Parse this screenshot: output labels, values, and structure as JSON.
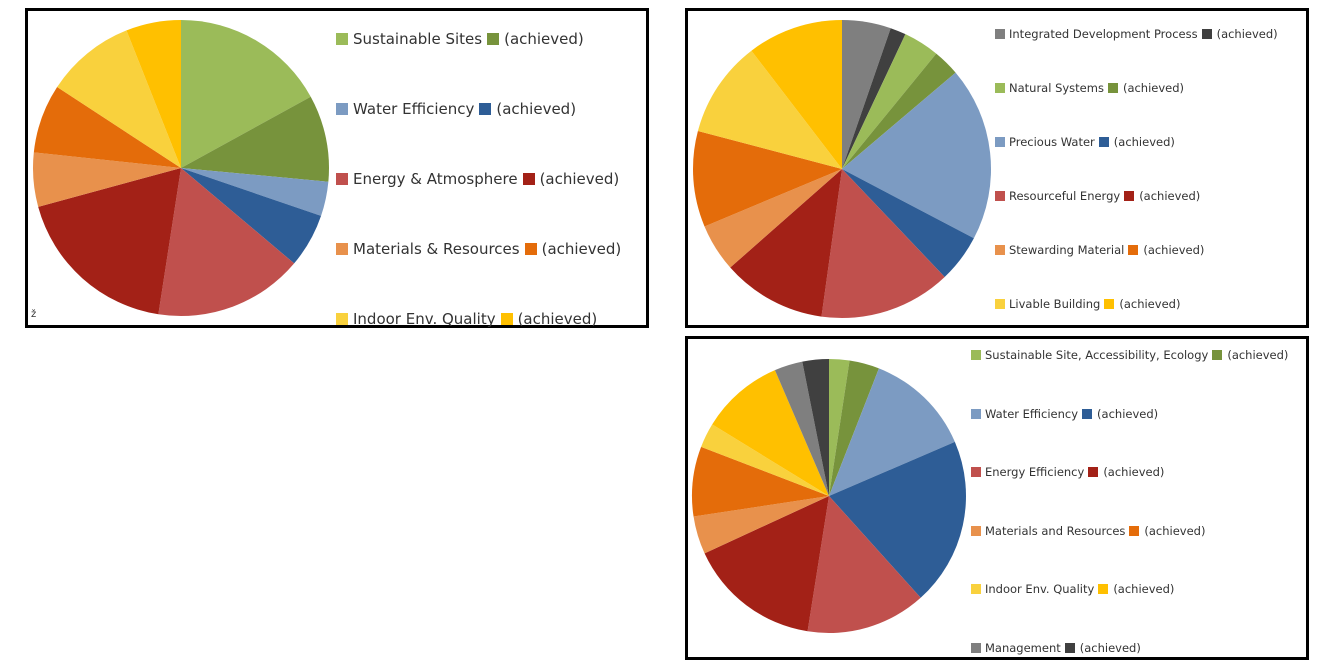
{
  "chart_data": [
    {
      "type": "pie",
      "start_angle": "12 o'clock, clockwise",
      "slices": [
        {
          "label": "Sustainable Sites",
          "value": 16.7,
          "color": "#9bbb59"
        },
        {
          "label": "(achieved)",
          "value": 9.3,
          "color": "#77933c"
        },
        {
          "label": "Water Efficiency",
          "value": 3.7,
          "color": "#7c9bc2"
        },
        {
          "label": "(achieved)",
          "value": 5.8,
          "color": "#2e5d96"
        },
        {
          "label": "Energy & Atmosphere",
          "value": 16.0,
          "color": "#c0504d"
        },
        {
          "label": "(achieved)",
          "value": 18.0,
          "color": "#a32117"
        },
        {
          "label": "Materials & Resources",
          "value": 5.8,
          "color": "#e8914c"
        },
        {
          "label": "(achieved)",
          "value": 7.4,
          "color": "#e46c0a"
        },
        {
          "label": "Indoor Env. Quality",
          "value": 9.6,
          "color": "#f9d13d"
        },
        {
          "label": "(achieved)",
          "value": 5.9,
          "color": "#ffc000"
        }
      ],
      "legend": [
        {
          "label": "Sustainable Sites",
          "color": "#9bbb59",
          "achieved_color": "#77933c",
          "achieved_label": "(achieved)"
        },
        {
          "label": "Water Efficiency",
          "color": "#7c9bc2",
          "achieved_color": "#2e5d96",
          "achieved_label": "(achieved)"
        },
        {
          "label": "Energy & Atmosphere",
          "color": "#c0504d",
          "achieved_color": "#a32117",
          "achieved_label": "(achieved)"
        },
        {
          "label": "Materials & Resources",
          "color": "#e8914c",
          "achieved_color": "#e46c0a",
          "achieved_label": "(achieved)"
        },
        {
          "label": "Indoor Env. Quality",
          "color": "#f9d13d",
          "achieved_color": "#ffc000",
          "achieved_label": "(achieved)"
        }
      ],
      "legend_position": "right",
      "corner_mark": "ž"
    },
    {
      "type": "pie",
      "start_angle": "12 o'clock, clockwise",
      "slices": [
        {
          "label": "Integrated Development Process",
          "value": 5.3,
          "color": "#7f7f7f"
        },
        {
          "label": "(achieved)",
          "value": 1.7,
          "color": "#404040"
        },
        {
          "label": "Natural Systems",
          "value": 3.9,
          "color": "#9bbb59"
        },
        {
          "label": "(achieved)",
          "value": 2.9,
          "color": "#77933c"
        },
        {
          "label": "Precious Water",
          "value": 18.9,
          "color": "#7c9bc2"
        },
        {
          "label": "(achieved)",
          "value": 5.2,
          "color": "#2e5d96"
        },
        {
          "label": "Resourceful Energy",
          "value": 14.3,
          "color": "#c0504d"
        },
        {
          "label": "(achieved)",
          "value": 11.3,
          "color": "#a32117"
        },
        {
          "label": "Stewarding Material",
          "value": 5.2,
          "color": "#e8914c"
        },
        {
          "label": "(achieved)",
          "value": 10.4,
          "color": "#e46c0a"
        },
        {
          "label": "Livable Building",
          "value": 10.5,
          "color": "#f9d13d"
        },
        {
          "label": "(achieved)",
          "value": 10.4,
          "color": "#ffc000"
        }
      ],
      "legend": [
        {
          "label": "Integrated Development Process",
          "color": "#7f7f7f",
          "achieved_color": "#404040",
          "achieved_label": "(achieved)"
        },
        {
          "label": "Natural Systems",
          "color": "#9bbb59",
          "achieved_color": "#77933c",
          "achieved_label": "(achieved)"
        },
        {
          "label": "Precious Water",
          "color": "#7c9bc2",
          "achieved_color": "#2e5d96",
          "achieved_label": "(achieved)"
        },
        {
          "label": "Resourceful Energy",
          "color": "#c0504d",
          "achieved_color": "#a32117",
          "achieved_label": "(achieved)"
        },
        {
          "label": "Stewarding Material",
          "color": "#e8914c",
          "achieved_color": "#e46c0a",
          "achieved_label": "(achieved)"
        },
        {
          "label": "Livable Building",
          "color": "#f9d13d",
          "achieved_color": "#ffc000",
          "achieved_label": "(achieved)"
        }
      ],
      "legend_position": "right"
    },
    {
      "type": "pie",
      "start_angle": "12 o'clock, clockwise",
      "slices": [
        {
          "label": "Sustainable Site, Accessibility, Ecology",
          "value": 2.3,
          "color": "#9bbb59"
        },
        {
          "label": "(achieved)",
          "value": 3.4,
          "color": "#77933c"
        },
        {
          "label": "Water Efficiency",
          "value": 12.1,
          "color": "#7c9bc2"
        },
        {
          "label": "(achieved)",
          "value": 19.0,
          "color": "#2e5d96"
        },
        {
          "label": "Energy Efficiency",
          "value": 13.6,
          "color": "#c0504d"
        },
        {
          "label": "(achieved)",
          "value": 15.0,
          "color": "#a32117"
        },
        {
          "label": "Materials and Resources",
          "value": 4.3,
          "color": "#e8914c"
        },
        {
          "label": "(achieved)",
          "value": 7.9,
          "color": "#e46c0a"
        },
        {
          "label": "Indoor Env. Quality",
          "value": 2.8,
          "color": "#f9d13d"
        },
        {
          "label": "(achieved)",
          "value": 9.4,
          "color": "#ffc000"
        },
        {
          "label": "Management",
          "value": 3.2,
          "color": "#7f7f7f"
        },
        {
          "label": "(achieved)",
          "value": 3.0,
          "color": "#404040"
        }
      ],
      "legend": [
        {
          "label": "Sustainable Site, Accessibility, Ecology",
          "color": "#9bbb59",
          "achieved_color": "#77933c",
          "achieved_label": "(achieved)"
        },
        {
          "label": "Water Efficiency",
          "color": "#7c9bc2",
          "achieved_color": "#2e5d96",
          "achieved_label": "(achieved)"
        },
        {
          "label": "Energy Efficiency",
          "color": "#c0504d",
          "achieved_color": "#a32117",
          "achieved_label": "(achieved)"
        },
        {
          "label": "Materials and Resources",
          "color": "#e8914c",
          "achieved_color": "#e46c0a",
          "achieved_label": "(achieved)"
        },
        {
          "label": "Indoor Env. Quality",
          "color": "#f9d13d",
          "achieved_color": "#ffc000",
          "achieved_label": "(achieved)"
        },
        {
          "label": "Management",
          "color": "#7f7f7f",
          "achieved_color": "#404040",
          "achieved_label": "(achieved)"
        }
      ],
      "legend_position": "right"
    }
  ]
}
